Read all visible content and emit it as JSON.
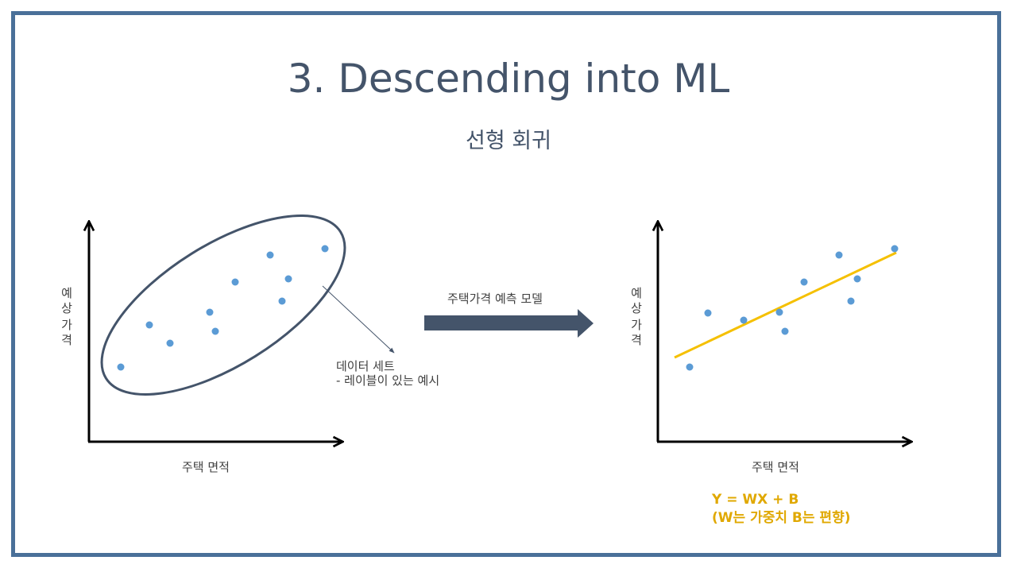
{
  "title": "3. Descending into ML",
  "subtitle": "선형 회귀",
  "left_chart": {
    "y_label_chars": [
      "예",
      "상",
      "가",
      "격"
    ],
    "x_label": "주택 면적",
    "callout_line1": "데이터 세트",
    "callout_line2": "- 레이블이 있는 예시"
  },
  "arrow_label": "주택가격 예측 모델",
  "right_chart": {
    "y_label_chars": [
      "예",
      "상",
      "가",
      "격"
    ],
    "x_label": "주택 면적",
    "formula_line1": "Y = WX + B",
    "formula_line2": "(W는 가중치 B는 편향)"
  },
  "colors": {
    "frame": "#4a7099",
    "text": "#44546a",
    "point": "#5b9bd5",
    "regression_line": "#f5c000",
    "formula": "#e0a800",
    "ellipse": "#44546a"
  }
}
